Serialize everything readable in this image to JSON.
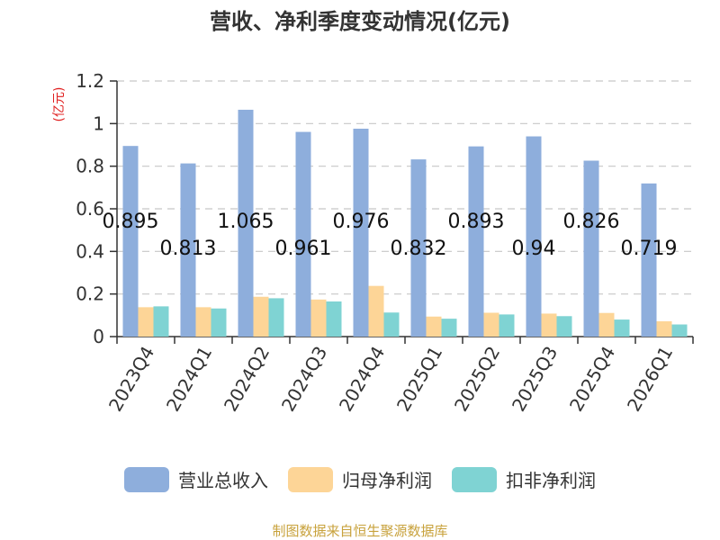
{
  "chart_data": {
    "type": "bar",
    "title": "营收、净利季度变动情况(亿元)",
    "ylabel": "(亿元)",
    "xlabel": "",
    "ylim": [
      0,
      1.2
    ],
    "yticks": [
      "0",
      "0.2",
      "0.4",
      "0.6",
      "0.8",
      "1",
      "1.2"
    ],
    "ytick_values": [
      0,
      0.2,
      0.4,
      0.6,
      0.8,
      1.0,
      1.2
    ],
    "grid": true,
    "legend_position": "bottom",
    "categories": [
      "2023Q4",
      "2024Q1",
      "2024Q2",
      "2024Q3",
      "2024Q4",
      "2025Q1",
      "2025Q2",
      "2025Q3",
      "2025Q4",
      "2026Q1"
    ],
    "series": [
      {
        "name": "营业总收入",
        "color": "#8eaedc",
        "values": [
          0.895,
          0.813,
          1.065,
          0.961,
          0.976,
          0.832,
          0.893,
          0.94,
          0.826,
          0.719
        ],
        "labels": [
          "0.895",
          "0.813",
          "1.065",
          "0.961",
          "0.976",
          "0.832",
          "0.893",
          "0.94",
          "0.826",
          "0.719"
        ]
      },
      {
        "name": "归母净利润",
        "color": "#fdd597",
        "values": [
          0.138,
          0.138,
          0.187,
          0.174,
          0.238,
          0.094,
          0.112,
          0.108,
          0.111,
          0.072
        ]
      },
      {
        "name": "扣非净利润",
        "color": "#7fd3d3",
        "values": [
          0.142,
          0.132,
          0.18,
          0.165,
          0.113,
          0.084,
          0.104,
          0.096,
          0.08,
          0.057
        ]
      }
    ]
  },
  "source_text": "制图数据来自恒生聚源数据库"
}
